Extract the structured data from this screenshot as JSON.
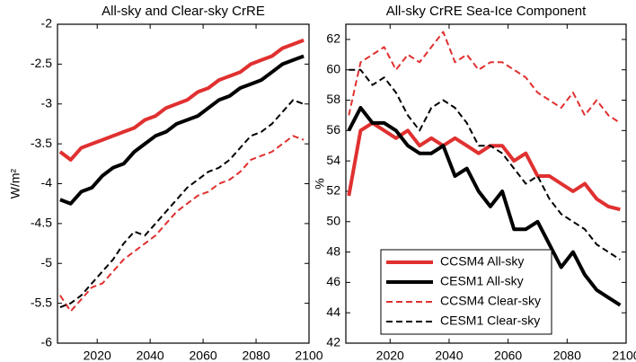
{
  "chart_data": [
    {
      "type": "line",
      "title": "All-sky and Clear-sky CrRE",
      "ylabel": "W/m²",
      "x": [
        2006,
        2010,
        2014,
        2018,
        2022,
        2026,
        2030,
        2034,
        2038,
        2042,
        2046,
        2050,
        2054,
        2058,
        2062,
        2066,
        2070,
        2074,
        2078,
        2082,
        2086,
        2090,
        2094,
        2098
      ],
      "xlim": [
        2005,
        2100
      ],
      "xticks": [
        2020,
        2040,
        2060,
        2080,
        2100
      ],
      "ylim": [
        -6,
        -2
      ],
      "yticks": [
        -6,
        -5.5,
        -5,
        -4.5,
        -4,
        -3.5,
        -3,
        -2.5,
        -2
      ],
      "series": [
        {
          "color": "#e03030",
          "style": "solid",
          "width": 4,
          "values": [
            -3.6,
            -3.7,
            -3.55,
            -3.5,
            -3.45,
            -3.4,
            -3.35,
            -3.3,
            -3.2,
            -3.15,
            -3.05,
            -3.0,
            -2.95,
            -2.85,
            -2.8,
            -2.7,
            -2.65,
            -2.6,
            -2.5,
            -2.45,
            -2.4,
            -2.3,
            -2.25,
            -2.2
          ]
        },
        {
          "color": "#000000",
          "style": "solid",
          "width": 4,
          "values": [
            -4.2,
            -4.25,
            -4.1,
            -4.05,
            -3.9,
            -3.8,
            -3.75,
            -3.6,
            -3.5,
            -3.4,
            -3.35,
            -3.25,
            -3.2,
            -3.15,
            -3.05,
            -2.95,
            -2.9,
            -2.8,
            -2.75,
            -2.7,
            -2.6,
            -2.5,
            -2.45,
            -2.4
          ]
        },
        {
          "color": "#e03030",
          "style": "dashed",
          "width": 2,
          "values": [
            -5.4,
            -5.6,
            -5.45,
            -5.3,
            -5.25,
            -5.1,
            -4.95,
            -4.85,
            -4.75,
            -4.65,
            -4.5,
            -4.35,
            -4.25,
            -4.15,
            -4.1,
            -4.0,
            -3.95,
            -3.85,
            -3.7,
            -3.65,
            -3.6,
            -3.5,
            -3.4,
            -3.45
          ]
        },
        {
          "color": "#000000",
          "style": "dashed",
          "width": 2,
          "values": [
            -5.55,
            -5.5,
            -5.4,
            -5.25,
            -5.1,
            -4.95,
            -4.75,
            -4.6,
            -4.65,
            -4.5,
            -4.35,
            -4.2,
            -4.05,
            -3.95,
            -3.85,
            -3.8,
            -3.7,
            -3.55,
            -3.4,
            -3.35,
            -3.25,
            -3.1,
            -2.95,
            -3.0
          ]
        }
      ]
    },
    {
      "type": "line",
      "title": "All-sky CrRE Sea-Ice Component",
      "ylabel": "%",
      "legend": "lower left",
      "x": [
        2006,
        2010,
        2014,
        2018,
        2022,
        2026,
        2030,
        2034,
        2038,
        2042,
        2046,
        2050,
        2054,
        2058,
        2062,
        2066,
        2070,
        2074,
        2078,
        2082,
        2086,
        2090,
        2094,
        2098
      ],
      "xlim": [
        2005,
        2100
      ],
      "xticks": [
        2020,
        2040,
        2060,
        2080,
        2100
      ],
      "ylim": [
        42,
        63
      ],
      "yticks": [
        42,
        44,
        46,
        48,
        50,
        52,
        54,
        56,
        58,
        60,
        62
      ],
      "series": [
        {
          "name": "CCSM4 All-sky",
          "color": "#e03030",
          "style": "solid",
          "width": 4,
          "values": [
            51.7,
            56,
            56.5,
            56,
            55.5,
            56,
            55,
            55.5,
            55,
            55.5,
            55,
            54.5,
            55,
            55,
            54,
            54.5,
            53,
            53,
            52.5,
            52,
            52.5,
            51.5,
            51,
            50.8
          ]
        },
        {
          "name": "CESM1 All-sky",
          "color": "#000000",
          "style": "solid",
          "width": 4,
          "values": [
            56,
            57.5,
            56.5,
            56.5,
            56,
            55,
            54.5,
            54.5,
            55,
            53,
            53.5,
            52,
            51,
            52,
            49.5,
            49.5,
            50,
            48.5,
            47,
            48,
            46.5,
            45.5,
            45,
            44.5
          ]
        },
        {
          "name": "CCSM4 Clear-sky",
          "color": "#e03030",
          "style": "dashed",
          "width": 2,
          "values": [
            57,
            60.5,
            61,
            61.5,
            60,
            61,
            60.5,
            61.5,
            62.5,
            60.5,
            61,
            60,
            60.5,
            60.5,
            60,
            59.5,
            58.5,
            58,
            57.5,
            58.5,
            57,
            58,
            57,
            56.5
          ]
        },
        {
          "name": "CESM1 Clear-sky",
          "color": "#000000",
          "style": "dashed",
          "width": 2,
          "values": [
            60,
            60,
            59,
            59.5,
            58.5,
            57,
            56,
            57.5,
            58,
            57.5,
            56.5,
            55,
            55,
            54.5,
            53.5,
            52.5,
            53,
            51.5,
            50.5,
            50,
            49.5,
            48.5,
            48,
            47.5
          ]
        }
      ]
    }
  ]
}
